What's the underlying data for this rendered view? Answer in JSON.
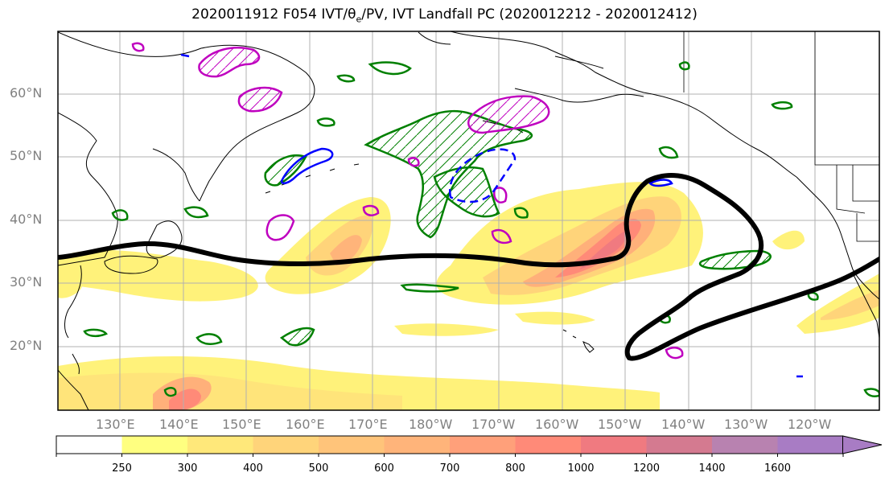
{
  "title": {
    "prefix": "2020011912 F054 IVT/",
    "theta_symbol": "θ",
    "theta_sub": "e",
    "suffix": "/PV, IVT Landfall PC (2020012212 - 2020012412)"
  },
  "map": {
    "lat_labels": [
      "60°N",
      "50°N",
      "40°N",
      "30°N",
      "20°N"
    ],
    "lon_labels": [
      "130°E",
      "140°E",
      "150°E",
      "160°E",
      "170°E",
      "180°W",
      "170°W",
      "160°W",
      "150°W",
      "140°W",
      "130°W",
      "120°W"
    ],
    "colors": {
      "landfall_contour": "#000000",
      "green_contour": "#008000",
      "magenta_contour": "#bf00bf",
      "blue_contour": "#0000ff",
      "coastline": "#000000",
      "grid": "#b0b0b0"
    }
  },
  "colorbar": {
    "ticks": [
      "250",
      "300",
      "400",
      "500",
      "600",
      "700",
      "800",
      "1000",
      "1200",
      "1400",
      "1600"
    ],
    "colors": [
      "#ffffff",
      "#ffff80",
      "#ffe87a",
      "#ffd47a",
      "#ffc47a",
      "#ffb47a",
      "#ffa07a",
      "#ff8a78",
      "#f07a80",
      "#d47a90",
      "#b882b0",
      "#a87cc4"
    ],
    "extend": "max"
  }
}
